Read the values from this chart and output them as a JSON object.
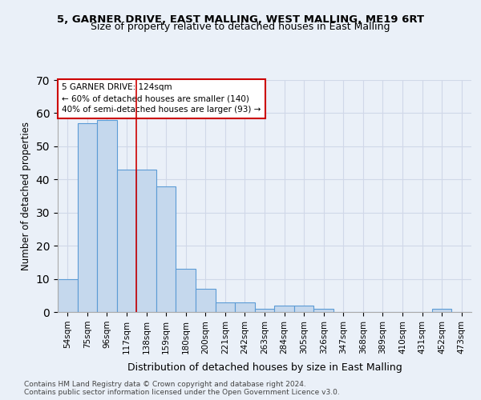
{
  "title1": "5, GARNER DRIVE, EAST MALLING, WEST MALLING, ME19 6RT",
  "title2": "Size of property relative to detached houses in East Malling",
  "xlabel": "Distribution of detached houses by size in East Malling",
  "ylabel": "Number of detached properties",
  "categories": [
    "54sqm",
    "75sqm",
    "96sqm",
    "117sqm",
    "138sqm",
    "159sqm",
    "180sqm",
    "200sqm",
    "221sqm",
    "242sqm",
    "263sqm",
    "284sqm",
    "305sqm",
    "326sqm",
    "347sqm",
    "368sqm",
    "389sqm",
    "410sqm",
    "431sqm",
    "452sqm",
    "473sqm"
  ],
  "values": [
    10,
    57,
    58,
    43,
    43,
    38,
    13,
    7,
    3,
    3,
    1,
    2,
    2,
    1,
    0,
    0,
    0,
    0,
    0,
    1,
    0
  ],
  "bar_color": "#c5d8ed",
  "bar_edge_color": "#5b9bd5",
  "vline_x_index": 3,
  "vline_color": "#cc0000",
  "annotation_text": "5 GARNER DRIVE: 124sqm\n← 60% of detached houses are smaller (140)\n40% of semi-detached houses are larger (93) →",
  "annotation_box_color": "#ffffff",
  "annotation_box_edge": "#cc0000",
  "ylim": [
    0,
    70
  ],
  "yticks": [
    0,
    10,
    20,
    30,
    40,
    50,
    60,
    70
  ],
  "grid_color": "#d0d8e8",
  "background_color": "#eaf0f8",
  "footnote": "Contains HM Land Registry data © Crown copyright and database right 2024.\nContains public sector information licensed under the Open Government Licence v3.0."
}
